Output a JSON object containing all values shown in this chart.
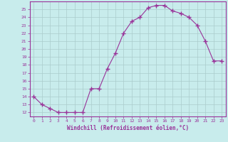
{
  "x": [
    0,
    1,
    2,
    3,
    4,
    5,
    6,
    7,
    8,
    9,
    10,
    11,
    12,
    13,
    14,
    15,
    16,
    17,
    18,
    19,
    20,
    21,
    22,
    23
  ],
  "y": [
    14,
    13,
    12.5,
    12,
    12,
    12,
    12,
    15,
    15,
    17.5,
    19.5,
    22,
    23.5,
    24,
    25.2,
    25.5,
    25.5,
    24.8,
    24.5,
    24,
    23,
    21,
    18.5,
    18.5
  ],
  "line_color": "#993399",
  "marker": "+",
  "bg_color": "#c8ecec",
  "grid_color": "#aacccc",
  "xlabel": "Windchill (Refroidissement éolien,°C)",
  "ylabel_ticks": [
    12,
    13,
    14,
    15,
    16,
    17,
    18,
    19,
    20,
    21,
    22,
    23,
    24,
    25
  ],
  "xticks": [
    0,
    1,
    2,
    3,
    4,
    5,
    6,
    7,
    8,
    9,
    10,
    11,
    12,
    13,
    14,
    15,
    16,
    17,
    18,
    19,
    20,
    21,
    22,
    23
  ],
  "xlim": [
    -0.5,
    23.5
  ],
  "ylim": [
    11.5,
    26.0
  ],
  "xlabel_color": "#993399",
  "tick_color": "#993399",
  "axis_color": "#993399",
  "spine_color": "#993399"
}
